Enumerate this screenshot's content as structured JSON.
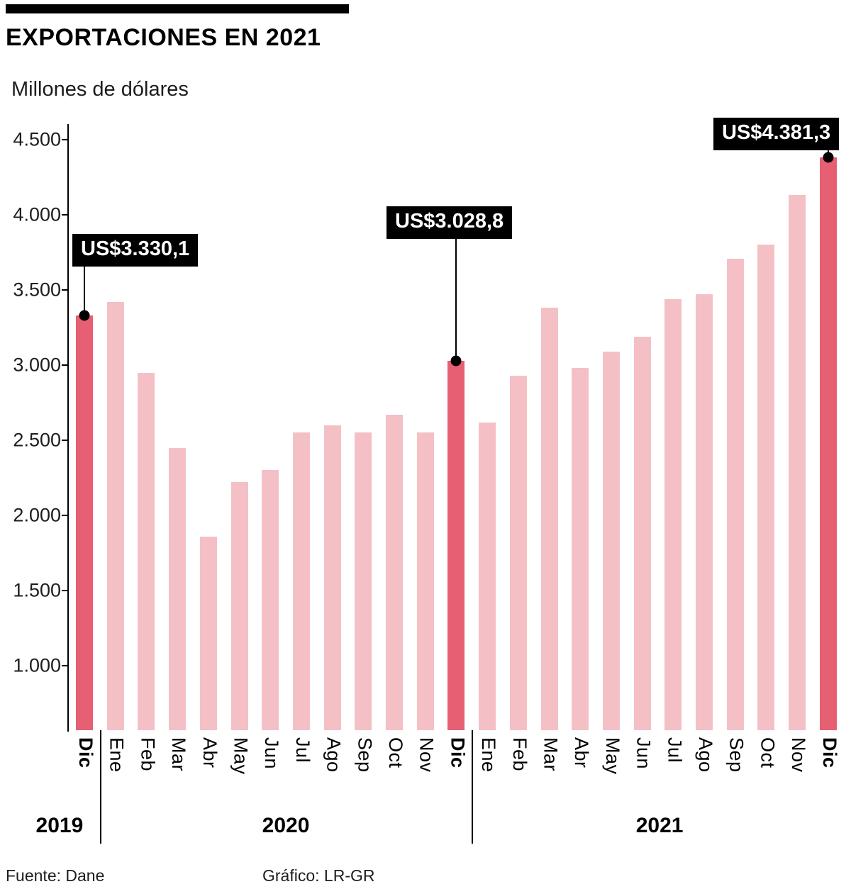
{
  "header": {
    "title": "EXPORTACIONES EN 2021",
    "subtitle": "Millones de dólares"
  },
  "footer": {
    "source": "Fuente: Dane",
    "credit": "Gráfico: LR-GR"
  },
  "colors": {
    "bar": "#f4c0c6",
    "bar_highlight": "#e75f72",
    "axis": "#000000",
    "callout_bg": "#000000",
    "callout_text": "#ffffff"
  },
  "chart_data": {
    "type": "bar",
    "title": "EXPORTACIONES EN 2021",
    "ylabel": "Millones de dólares",
    "categories": [
      "Dic",
      "Ene",
      "Feb",
      "Mar",
      "Abr",
      "May",
      "Jun",
      "Jul",
      "Ago",
      "Sep",
      "Oct",
      "Nov",
      "Dic",
      "Ene",
      "Feb",
      "Mar",
      "Abr",
      "May",
      "Jun",
      "Jul",
      "Ago",
      "Sep",
      "Oct",
      "Nov",
      "Dic"
    ],
    "values": [
      3330.1,
      3420,
      2950,
      2450,
      1860,
      2220,
      2300,
      2550,
      2600,
      2550,
      2670,
      2550,
      3028.8,
      2620,
      2930,
      3380,
      2980,
      3090,
      3190,
      3440,
      3470,
      3710,
      3800,
      4130,
      4381.3
    ],
    "highlighted": [
      0,
      12,
      24
    ],
    "year_groups": [
      {
        "label": "2019",
        "start": 0,
        "end": 0
      },
      {
        "label": "2020",
        "start": 1,
        "end": 12
      },
      {
        "label": "2021",
        "start": 13,
        "end": 24
      }
    ],
    "callouts": [
      {
        "index": 0,
        "label": "US$3.330,1"
      },
      {
        "index": 12,
        "label": "US$3.028,8"
      },
      {
        "index": 24,
        "label": "US$4.381,3"
      }
    ],
    "y_axis": {
      "ticks": [
        {
          "label": "4.500",
          "value": 4500
        },
        {
          "label": "4.000",
          "value": 4000
        },
        {
          "label": "3.500",
          "value": 3500
        },
        {
          "label": "3.000",
          "value": 3000
        },
        {
          "label": "2.500",
          "value": 2500
        },
        {
          "label": "2.000",
          "value": 2000
        },
        {
          "label": "1.500",
          "value": 1500
        },
        {
          "label": "1.000",
          "value": 1000
        }
      ]
    },
    "ylim": [
      571,
      4600
    ],
    "grid": false,
    "legend": "none"
  }
}
